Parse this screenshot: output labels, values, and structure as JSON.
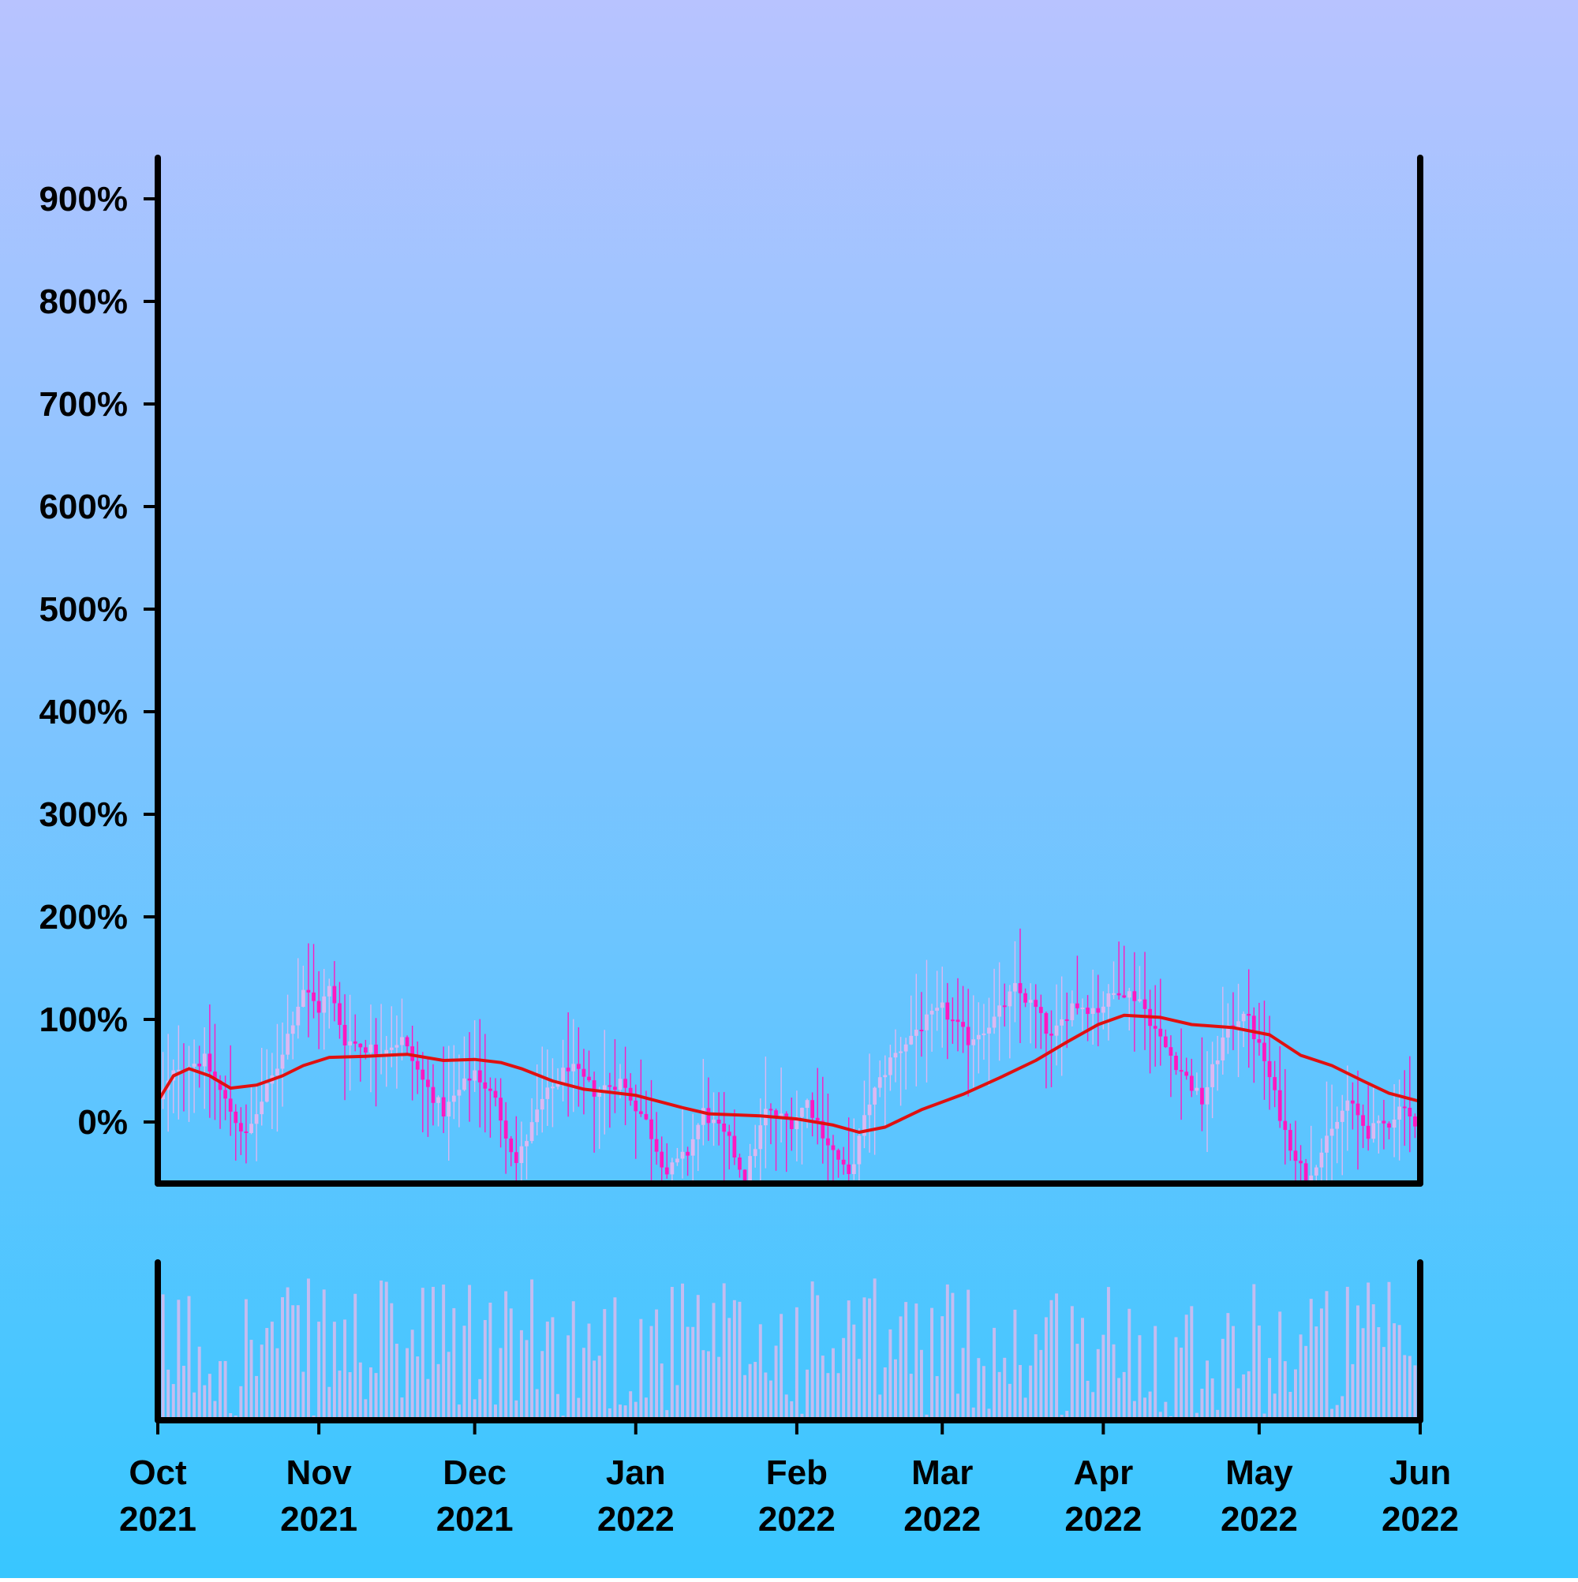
{
  "chart_data": {
    "type": "candlestick",
    "title": "",
    "xlabel": "",
    "ylabel": "",
    "y_axis": {
      "unit": "%",
      "range": [
        -60,
        940
      ],
      "ticks": [
        0,
        100,
        200,
        300,
        400,
        500,
        600,
        700,
        800,
        900
      ],
      "tick_labels": [
        "0%",
        "100%",
        "200%",
        "300%",
        "400%",
        "500%",
        "600%",
        "700%",
        "800%",
        "900%"
      ]
    },
    "x_axis": {
      "range": [
        "2021-10-01",
        "2022-06-01"
      ],
      "ticks": [
        "2021-10-01",
        "2021-11-01",
        "2021-12-01",
        "2022-01-01",
        "2022-02-01",
        "2022-03-01",
        "2022-04-01",
        "2022-05-01",
        "2022-06-01"
      ],
      "tick_labels": [
        [
          "Oct",
          "2021"
        ],
        [
          "Nov",
          "2021"
        ],
        [
          "Dec",
          "2021"
        ],
        [
          "Jan",
          "2022"
        ],
        [
          "Feb",
          "2022"
        ],
        [
          "Mar",
          "2022"
        ],
        [
          "Apr",
          "2022"
        ],
        [
          "May",
          "2022"
        ],
        [
          "Jun",
          "2022"
        ]
      ]
    },
    "grid": false,
    "legend": "none",
    "close_path_keypoints": [
      {
        "date": "2021-10-01",
        "value": 20
      },
      {
        "date": "2021-10-05",
        "value": 55
      },
      {
        "date": "2021-10-10",
        "value": 60
      },
      {
        "date": "2021-10-14",
        "value": 20
      },
      {
        "date": "2021-10-18",
        "value": -15
      },
      {
        "date": "2021-10-24",
        "value": 55
      },
      {
        "date": "2021-10-29",
        "value": 130
      },
      {
        "date": "2021-11-01",
        "value": 110
      },
      {
        "date": "2021-11-03",
        "value": 130
      },
      {
        "date": "2021-11-06",
        "value": 80
      },
      {
        "date": "2021-11-12",
        "value": 70
      },
      {
        "date": "2021-11-17",
        "value": 80
      },
      {
        "date": "2021-11-21",
        "value": 40
      },
      {
        "date": "2021-11-25",
        "value": 10
      },
      {
        "date": "2021-12-01",
        "value": 50
      },
      {
        "date": "2021-12-05",
        "value": 20
      },
      {
        "date": "2021-12-09",
        "value": -40
      },
      {
        "date": "2021-12-14",
        "value": 20
      },
      {
        "date": "2021-12-19",
        "value": 55
      },
      {
        "date": "2021-12-24",
        "value": 30
      },
      {
        "date": "2021-12-29",
        "value": 40
      },
      {
        "date": "2022-01-03",
        "value": 0
      },
      {
        "date": "2022-01-07",
        "value": -50
      },
      {
        "date": "2022-01-11",
        "value": -30
      },
      {
        "date": "2022-01-14",
        "value": 10
      },
      {
        "date": "2022-01-19",
        "value": -20
      },
      {
        "date": "2022-01-22",
        "value": -55
      },
      {
        "date": "2022-01-26",
        "value": 10
      },
      {
        "date": "2022-01-31",
        "value": 0
      },
      {
        "date": "2022-02-03",
        "value": 20
      },
      {
        "date": "2022-02-07",
        "value": -20
      },
      {
        "date": "2022-02-11",
        "value": -55
      },
      {
        "date": "2022-02-15",
        "value": 20
      },
      {
        "date": "2022-02-19",
        "value": 60
      },
      {
        "date": "2022-02-24",
        "value": 90
      },
      {
        "date": "2022-03-01",
        "value": 110
      },
      {
        "date": "2022-03-06",
        "value": 80
      },
      {
        "date": "2022-03-11",
        "value": 100
      },
      {
        "date": "2022-03-15",
        "value": 130
      },
      {
        "date": "2022-03-19",
        "value": 110
      },
      {
        "date": "2022-03-22",
        "value": 80
      },
      {
        "date": "2022-03-26",
        "value": 115
      },
      {
        "date": "2022-03-31",
        "value": 110
      },
      {
        "date": "2022-04-04",
        "value": 130
      },
      {
        "date": "2022-04-08",
        "value": 120
      },
      {
        "date": "2022-04-12",
        "value": 80
      },
      {
        "date": "2022-04-16",
        "value": 50
      },
      {
        "date": "2022-04-20",
        "value": 20
      },
      {
        "date": "2022-04-24",
        "value": 80
      },
      {
        "date": "2022-04-28",
        "value": 110
      },
      {
        "date": "2022-05-02",
        "value": 60
      },
      {
        "date": "2022-05-06",
        "value": -10
      },
      {
        "date": "2022-05-10",
        "value": -55
      },
      {
        "date": "2022-05-14",
        "value": -20
      },
      {
        "date": "2022-05-18",
        "value": 20
      },
      {
        "date": "2022-05-22",
        "value": -10
      },
      {
        "date": "2022-05-26",
        "value": 0
      },
      {
        "date": "2022-05-29",
        "value": 20
      },
      {
        "date": "2022-06-01",
        "value": -20
      }
    ],
    "moving_average": [
      {
        "date": "2021-10-01",
        "value": 20
      },
      {
        "date": "2021-10-04",
        "value": 45
      },
      {
        "date": "2021-10-07",
        "value": 52
      },
      {
        "date": "2021-10-11",
        "value": 45
      },
      {
        "date": "2021-10-15",
        "value": 33
      },
      {
        "date": "2021-10-20",
        "value": 36
      },
      {
        "date": "2021-10-25",
        "value": 45
      },
      {
        "date": "2021-10-29",
        "value": 55
      },
      {
        "date": "2021-11-03",
        "value": 63
      },
      {
        "date": "2021-11-10",
        "value": 64
      },
      {
        "date": "2021-11-18",
        "value": 66
      },
      {
        "date": "2021-11-25",
        "value": 60
      },
      {
        "date": "2021-12-01",
        "value": 61
      },
      {
        "date": "2021-12-06",
        "value": 58
      },
      {
        "date": "2021-12-10",
        "value": 52
      },
      {
        "date": "2021-12-16",
        "value": 40
      },
      {
        "date": "2021-12-22",
        "value": 32
      },
      {
        "date": "2022-01-01",
        "value": 26
      },
      {
        "date": "2022-01-10",
        "value": 14
      },
      {
        "date": "2022-01-15",
        "value": 8
      },
      {
        "date": "2022-01-25",
        "value": 6
      },
      {
        "date": "2022-02-01",
        "value": 3
      },
      {
        "date": "2022-02-08",
        "value": -3
      },
      {
        "date": "2022-02-13",
        "value": -10
      },
      {
        "date": "2022-02-18",
        "value": -5
      },
      {
        "date": "2022-02-25",
        "value": 12
      },
      {
        "date": "2022-03-05",
        "value": 27
      },
      {
        "date": "2022-03-12",
        "value": 43
      },
      {
        "date": "2022-03-19",
        "value": 60
      },
      {
        "date": "2022-03-25",
        "value": 78
      },
      {
        "date": "2022-03-31",
        "value": 95
      },
      {
        "date": "2022-04-05",
        "value": 104
      },
      {
        "date": "2022-04-12",
        "value": 102
      },
      {
        "date": "2022-04-18",
        "value": 95
      },
      {
        "date": "2022-04-26",
        "value": 92
      },
      {
        "date": "2022-05-03",
        "value": 85
      },
      {
        "date": "2022-05-09",
        "value": 65
      },
      {
        "date": "2022-05-15",
        "value": 55
      },
      {
        "date": "2022-05-21",
        "value": 40
      },
      {
        "date": "2022-05-26",
        "value": 28
      },
      {
        "date": "2022-06-01",
        "value": 20
      }
    ],
    "colors": {
      "background_top": "#b8c3ff",
      "background_bottom": "#38c6ff",
      "axis": "#000000",
      "candle_up": "#dcb8f2",
      "candle_down": "#ff18c0",
      "moving_average": "#e01010",
      "volume": "#c4bcf0"
    }
  }
}
